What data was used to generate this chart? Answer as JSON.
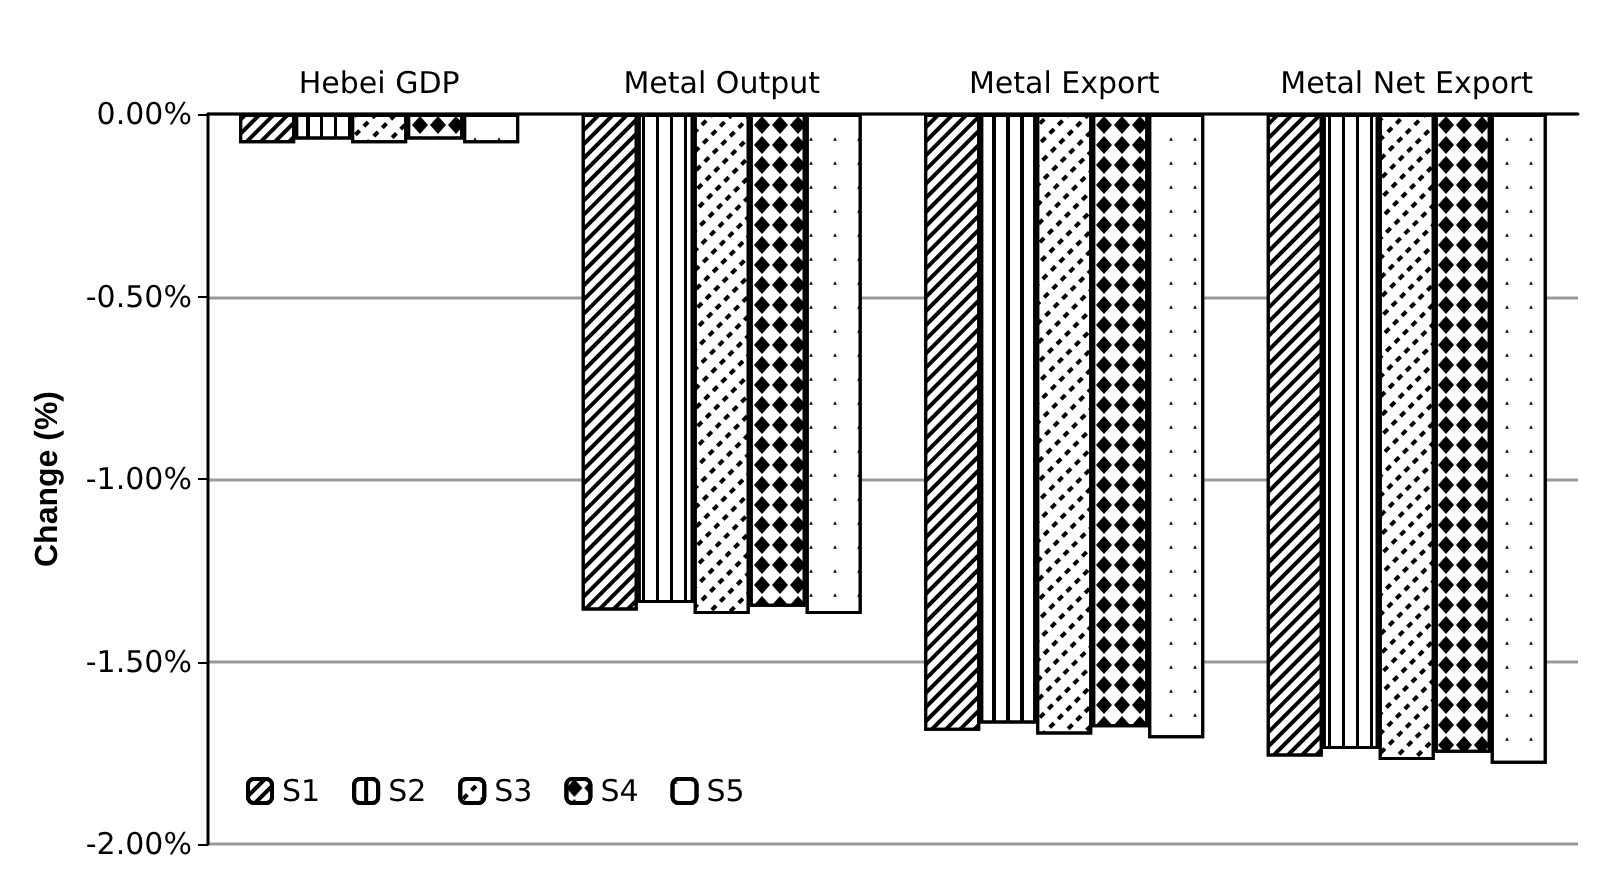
{
  "chart_data": {
    "type": "bar",
    "ylabel": "Change (%)",
    "categories": [
      "Hebei GDP",
      "Metal Output",
      "Metal Export",
      "Metal Net Export"
    ],
    "series": [
      {
        "name": "S1",
        "color": "#ffffff",
        "values": [
          -0.08,
          -1.36,
          -1.69,
          -1.76
        ]
      },
      {
        "name": "S2",
        "color": "#ffffff",
        "values": [
          -0.07,
          -1.34,
          -1.67,
          -1.74
        ]
      },
      {
        "name": "S3",
        "color": "#ffffff",
        "values": [
          -0.08,
          -1.37,
          -1.7,
          -1.77
        ]
      },
      {
        "name": "S4",
        "color": "#ffffff",
        "values": [
          -0.07,
          -1.35,
          -1.68,
          -1.75
        ]
      },
      {
        "name": "S5",
        "color": "#ffffff",
        "values": [
          -0.08,
          -1.37,
          -1.71,
          -1.78
        ]
      }
    ],
    "ylim": [
      -2,
      0
    ],
    "yticks": [
      {
        "value": -2,
        "label": "-2.00%"
      },
      {
        "value": -1.5,
        "label": "-1.50%"
      },
      {
        "value": -1,
        "label": "-1.00%"
      },
      {
        "value": -0.5,
        "label": "-0.50%"
      },
      {
        "value": 0,
        "label": "0.00%"
      }
    ],
    "grid": "y",
    "legend": "bottom left"
  }
}
